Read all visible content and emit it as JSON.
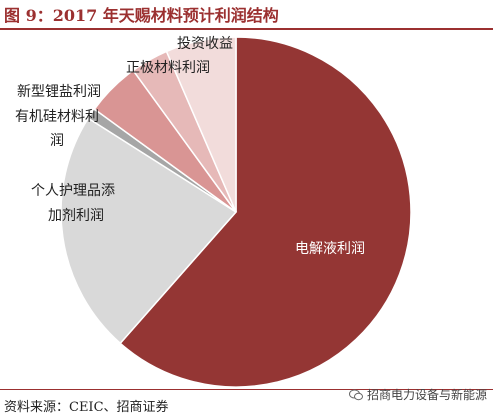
{
  "header": {
    "title": "图 9：2017 年天赐材料预计利润结构"
  },
  "footer": {
    "source": "资料来源：CEIC、招商证券",
    "watermark": "招商电力设备与新能源",
    "watermark_icon": "wechat-icon"
  },
  "chart_data": {
    "type": "pie",
    "title": "图 9：2017 年天赐材料预计利润结构",
    "slices": [
      {
        "label": "电解液利润",
        "value": 61.5,
        "color": "#943634"
      },
      {
        "label": "个人护理品添加剂利润",
        "value": 22.5,
        "color": "#d9d9d9"
      },
      {
        "label": "有机硅材料利润",
        "value": 1.0,
        "color": "#a6a6a6"
      },
      {
        "label": "新型锂盐利润",
        "value": 5.0,
        "color": "#d99594"
      },
      {
        "label": "正极材料利润",
        "value": 3.5,
        "color": "#e6b9b8"
      },
      {
        "label": "投资收益",
        "value": 6.5,
        "color": "#f2dcdb"
      }
    ],
    "start_angle_deg": 0,
    "direction": "clockwise",
    "legend": "none",
    "slice_border_color": "#ffffff"
  }
}
